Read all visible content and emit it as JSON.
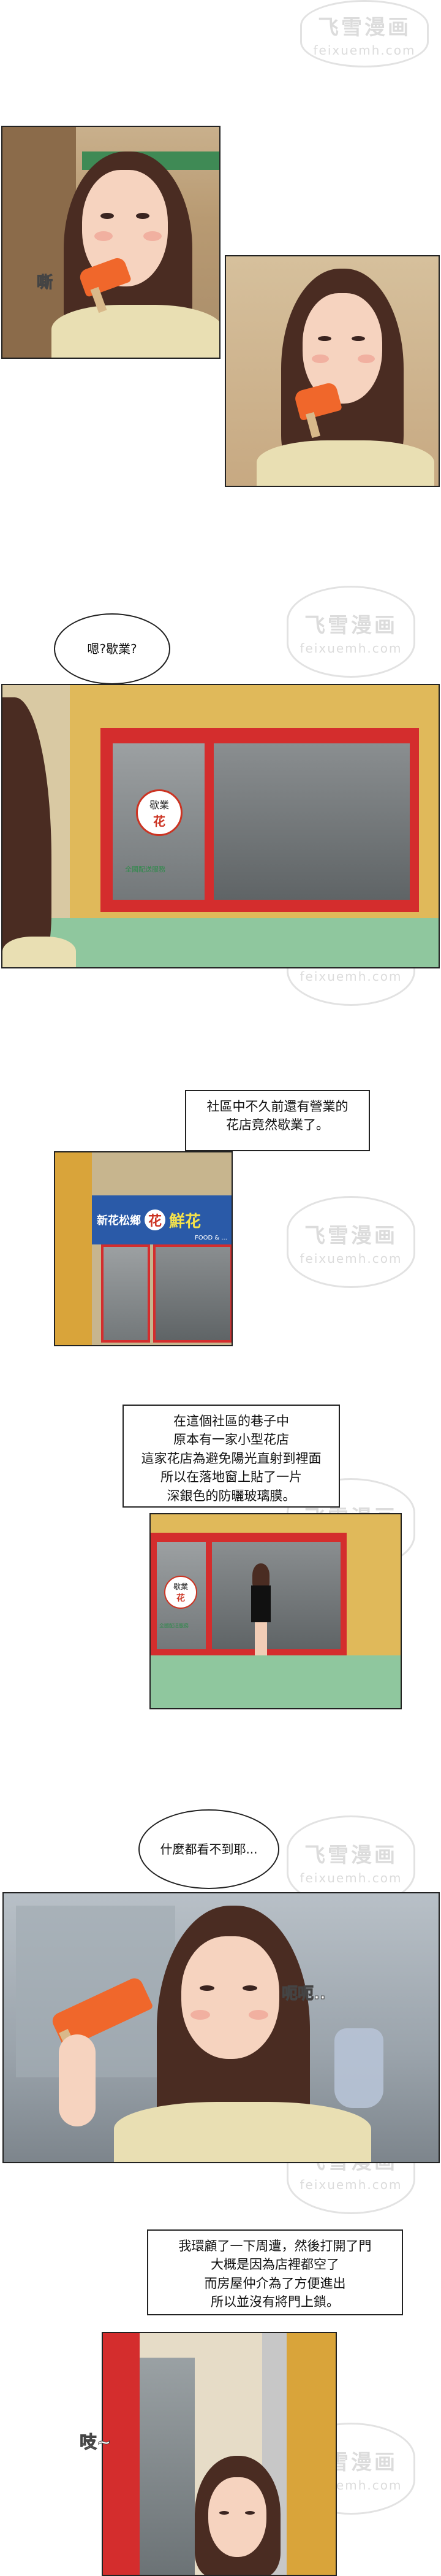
{
  "watermark": {
    "cn": "飞雪漫画",
    "en": "feixuemh.com"
  },
  "panel2_sfx": "嘶",
  "panel4": {
    "bubble": "嗯?歇業?",
    "shop_sign_main": "歇業",
    "shop_sign_char": "花",
    "shop_subtext": "全國配送服務"
  },
  "caption1": "社區中不久前還有營業的\n花店竟然歇業了。",
  "panel5": {
    "sign_left": "新花松鄉",
    "sign_char": "花",
    "sign_right": "鮮花",
    "sign_small": "FOOD & ..."
  },
  "caption2": "在這個社區的巷子中\n原本有一家小型花店\n這家花店為避免陽光直射到裡面\n所以在落地窗上貼了一片\n深銀色的防曬玻璃膜。",
  "panel6": {
    "shop_sign_main": "歇業",
    "shop_sign_char": "花",
    "shop_subtext": "全國配送服務"
  },
  "bubble2": "什麼都看不到耶...",
  "panel7_sfx": "呃呃..",
  "caption3": "我環顧了一下周遭，然後打開了門\n大概是因為店裡都空了\n而房屋仲介為了方便進出\n所以並沒有將門上鎖。",
  "panel8_sfx": "吱~"
}
